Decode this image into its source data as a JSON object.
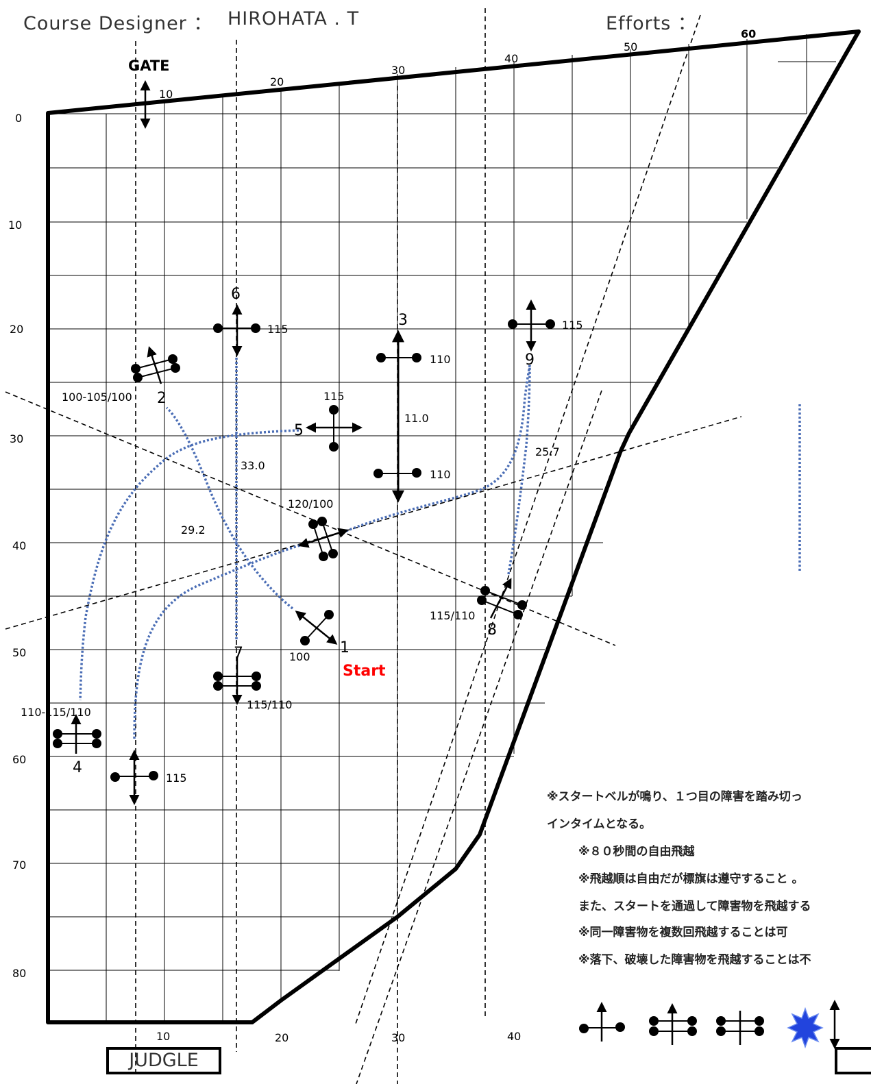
{
  "header": {
    "designer_label": "Course Designer ：",
    "designer_name": "HIROHATA . T",
    "efforts_label": "Efforts ："
  },
  "top_scale": [
    "10",
    "20",
    "30",
    "40",
    "50",
    "60"
  ],
  "left_scale": [
    "0",
    "10",
    "20",
    "30",
    "40",
    "50",
    "60",
    "70",
    "80"
  ],
  "bottom_scale": [
    "10",
    "20",
    "30",
    "40"
  ],
  "gate_label": "GATE",
  "judge_label": "JUDGLE",
  "start_label": "Start",
  "colors": {
    "start": "#ff0000",
    "route": "#4a6db5",
    "star": "#2244dd"
  },
  "obstacles": [
    {
      "number": "1",
      "height": "100",
      "type": "cross-vertical"
    },
    {
      "number": "2",
      "height": "100-105/100",
      "type": "oxer"
    },
    {
      "number": "3",
      "height": "110",
      "height_2": "110",
      "distance": "11.0",
      "type": "combination"
    },
    {
      "number": "4",
      "height": "110-115/110",
      "type": "oxer"
    },
    {
      "number": "5",
      "height": "115",
      "type": "vertical"
    },
    {
      "number": "6",
      "height": "115",
      "type": "vertical"
    },
    {
      "number": "7",
      "height": "115/110",
      "type": "oxer"
    },
    {
      "number": "8",
      "height": "115/110",
      "type": "oxer"
    },
    {
      "number": "9",
      "height": "115",
      "type": "vertical"
    },
    {
      "number": "",
      "height": "115",
      "type": "vertical"
    },
    {
      "number": "",
      "height": "120/100",
      "type": "oxer"
    }
  ],
  "distances": [
    "33.0",
    "29.2",
    "25.7"
  ],
  "notes": [
    "※スタートベルが鳴り、１つ目の障害を踏み切っ",
    "インタイムとなる。",
    "※８０秒間の自由飛越",
    "※飛越順は自由だが標旗は遵守すること 。",
    "また、スタートを通過して障害物を飛越する",
    "※同一障害物を複数回飛越することは可",
    " ※落下、破壊した障害物を飛越することは不"
  ],
  "legend_icons": [
    "vertical-icon",
    "oxer-icon",
    "oxer-plain-icon",
    "joker-star-icon",
    "flag-arrow-icon"
  ]
}
